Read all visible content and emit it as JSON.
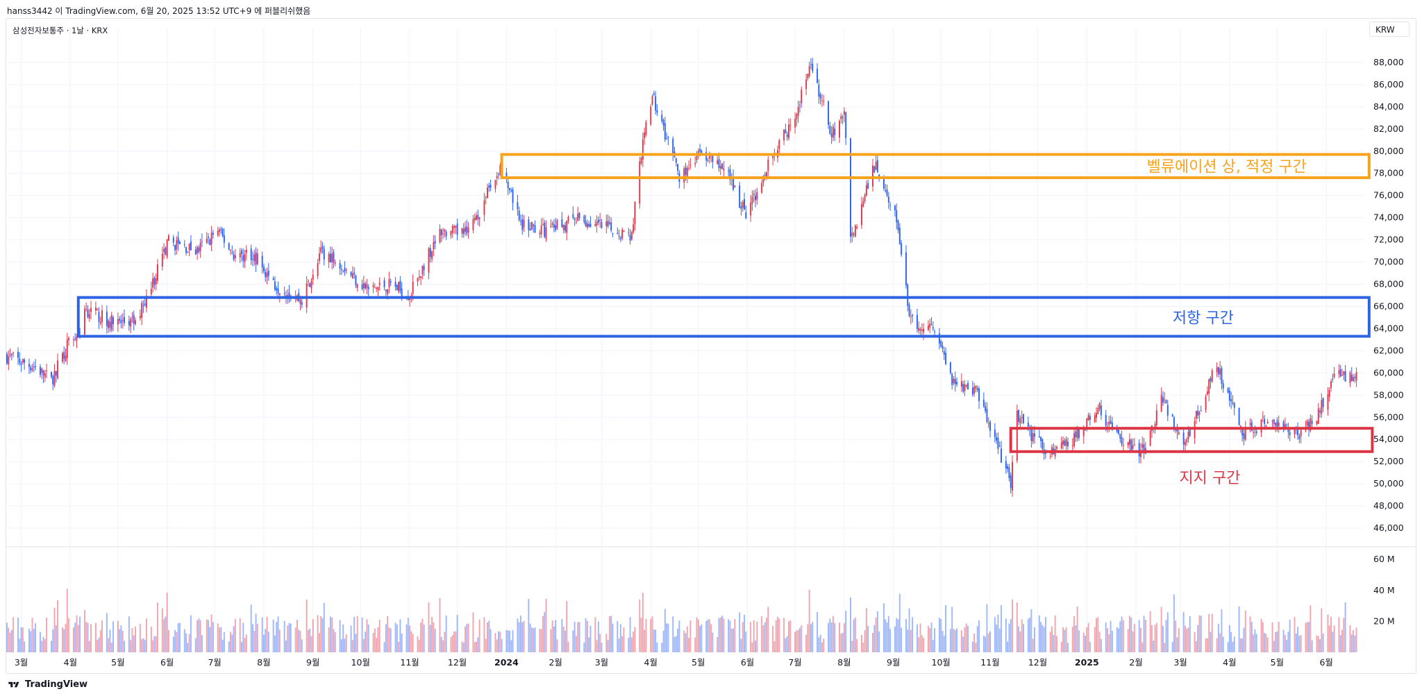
{
  "header": {
    "publication": "hanss3442 이 TradingView.com, 6월 20, 2025 13:52 UTC+9 에 퍼블리쉬했음"
  },
  "symbol": {
    "line": "삼성전자보통주 · 1날 · KRX",
    "currency": "KRW"
  },
  "footer": {
    "brand": "TradingView",
    "logo_icon": "tradingview-logo-icon"
  },
  "colors": {
    "up": "#e2374b",
    "down": "#2962ff",
    "valuation_zone": "#f7a21b",
    "resistance_zone": "#2e63e3",
    "support_zone": "#dc3545",
    "grid": "#f0f3fa"
  },
  "chart_data": {
    "type": "candlestick",
    "price_axis": {
      "ticks": [
        "88,000",
        "86,000",
        "84,000",
        "82,000",
        "80,000",
        "78,000",
        "76,000",
        "74,000",
        "72,000",
        "70,000",
        "68,000",
        "66,000",
        "64,000",
        "62,000",
        "60,000",
        "58,000",
        "56,000",
        "54,000",
        "52,000",
        "50,000",
        "48,000",
        "46,000"
      ],
      "range": [
        44500,
        90500
      ]
    },
    "volume_axis": {
      "ticks": [
        "60 M",
        "40 M",
        "20 M"
      ],
      "range": [
        0,
        65
      ]
    },
    "time_axis": [
      {
        "label": "3월",
        "date": "2023-03-01",
        "bold": false
      },
      {
        "label": "4월",
        "date": "2023-04-01",
        "bold": false
      },
      {
        "label": "5월",
        "date": "2023-05-01",
        "bold": false
      },
      {
        "label": "6월",
        "date": "2023-06-01",
        "bold": false
      },
      {
        "label": "7월",
        "date": "2023-07-01",
        "bold": false
      },
      {
        "label": "8월",
        "date": "2023-08-01",
        "bold": false
      },
      {
        "label": "9월",
        "date": "2023-09-01",
        "bold": false
      },
      {
        "label": "10월",
        "date": "2023-10-01",
        "bold": false
      },
      {
        "label": "11월",
        "date": "2023-11-01",
        "bold": false
      },
      {
        "label": "12월",
        "date": "2023-12-01",
        "bold": false
      },
      {
        "label": "2024",
        "date": "2024-01-01",
        "bold": true
      },
      {
        "label": "2월",
        "date": "2024-02-01",
        "bold": false
      },
      {
        "label": "3월",
        "date": "2024-03-01",
        "bold": false
      },
      {
        "label": "4월",
        "date": "2024-04-01",
        "bold": false
      },
      {
        "label": "5월",
        "date": "2024-05-01",
        "bold": false
      },
      {
        "label": "6월",
        "date": "2024-06-01",
        "bold": false
      },
      {
        "label": "7월",
        "date": "2024-07-01",
        "bold": false
      },
      {
        "label": "8월",
        "date": "2024-08-01",
        "bold": false
      },
      {
        "label": "9월",
        "date": "2024-09-01",
        "bold": false
      },
      {
        "label": "10월",
        "date": "2024-10-01",
        "bold": false
      },
      {
        "label": "11월",
        "date": "2024-11-01",
        "bold": false
      },
      {
        "label": "12월",
        "date": "2024-12-01",
        "bold": false
      },
      {
        "label": "2025",
        "date": "2025-01-01",
        "bold": true
      },
      {
        "label": "2월",
        "date": "2025-02-01",
        "bold": false
      },
      {
        "label": "3월",
        "date": "2025-03-01",
        "bold": false
      },
      {
        "label": "4월",
        "date": "2025-04-01",
        "bold": false
      },
      {
        "label": "5월",
        "date": "2025-05-01",
        "bold": false
      },
      {
        "label": "6월",
        "date": "2025-06-01",
        "bold": false
      }
    ],
    "date_range": [
      "2023-02-20",
      "2025-06-25"
    ],
    "price_path": [
      {
        "date": "2023-02-20",
        "close": 61500
      },
      {
        "date": "2023-03-10",
        "close": 60500
      },
      {
        "date": "2023-03-20",
        "close": 59300
      },
      {
        "date": "2023-03-31",
        "close": 62800
      },
      {
        "date": "2023-04-06",
        "close": 63500
      },
      {
        "date": "2023-04-10",
        "close": 65800
      },
      {
        "date": "2023-04-28",
        "close": 64500
      },
      {
        "date": "2023-05-12",
        "close": 64500
      },
      {
        "date": "2023-05-22",
        "close": 67800
      },
      {
        "date": "2023-06-02",
        "close": 71800
      },
      {
        "date": "2023-06-20",
        "close": 71000
      },
      {
        "date": "2023-07-03",
        "close": 72800
      },
      {
        "date": "2023-07-14",
        "close": 70500
      },
      {
        "date": "2023-07-25",
        "close": 70800
      },
      {
        "date": "2023-08-08",
        "close": 68000
      },
      {
        "date": "2023-08-25",
        "close": 66500
      },
      {
        "date": "2023-09-05",
        "close": 70700
      },
      {
        "date": "2023-09-15",
        "close": 70500
      },
      {
        "date": "2023-09-27",
        "close": 68600
      },
      {
        "date": "2023-10-06",
        "close": 67500
      },
      {
        "date": "2023-10-20",
        "close": 68000
      },
      {
        "date": "2023-11-01",
        "close": 67000
      },
      {
        "date": "2023-11-20",
        "close": 72800
      },
      {
        "date": "2023-12-08",
        "close": 72500
      },
      {
        "date": "2023-12-28",
        "close": 78500
      },
      {
        "date": "2024-01-10",
        "close": 73500
      },
      {
        "date": "2024-01-25",
        "close": 72800
      },
      {
        "date": "2024-02-15",
        "close": 73800
      },
      {
        "date": "2024-03-05",
        "close": 73000
      },
      {
        "date": "2024-03-20",
        "close": 72400
      },
      {
        "date": "2024-03-25",
        "close": 79300
      },
      {
        "date": "2024-04-02",
        "close": 85000
      },
      {
        "date": "2024-04-19",
        "close": 77500
      },
      {
        "date": "2024-05-03",
        "close": 80000
      },
      {
        "date": "2024-05-22",
        "close": 77500
      },
      {
        "date": "2024-05-31",
        "close": 74000
      },
      {
        "date": "2024-06-14",
        "close": 79000
      },
      {
        "date": "2024-07-01",
        "close": 83000
      },
      {
        "date": "2024-07-11",
        "close": 87800
      },
      {
        "date": "2024-07-24",
        "close": 81500
      },
      {
        "date": "2024-08-01",
        "close": 83500
      },
      {
        "date": "2024-08-05",
        "close": 72000
      },
      {
        "date": "2024-08-21",
        "close": 79000
      },
      {
        "date": "2024-09-02",
        "close": 74500
      },
      {
        "date": "2024-09-12",
        "close": 64500
      },
      {
        "date": "2024-09-27",
        "close": 64200
      },
      {
        "date": "2024-10-08",
        "close": 59500
      },
      {
        "date": "2024-10-25",
        "close": 58000
      },
      {
        "date": "2024-11-14",
        "close": 50000
      },
      {
        "date": "2024-11-18",
        "close": 56000
      },
      {
        "date": "2024-12-06",
        "close": 53000
      },
      {
        "date": "2024-12-20",
        "close": 53500
      },
      {
        "date": "2025-01-08",
        "close": 56800
      },
      {
        "date": "2025-01-24",
        "close": 53700
      },
      {
        "date": "2025-02-05",
        "close": 53000
      },
      {
        "date": "2025-02-17",
        "close": 57500
      },
      {
        "date": "2025-03-04",
        "close": 53500
      },
      {
        "date": "2025-03-24",
        "close": 60800
      },
      {
        "date": "2025-04-09",
        "close": 54500
      },
      {
        "date": "2025-04-25",
        "close": 55700
      },
      {
        "date": "2025-05-15",
        "close": 54600
      },
      {
        "date": "2025-05-27",
        "close": 56300
      },
      {
        "date": "2025-06-05",
        "close": 59800
      },
      {
        "date": "2025-06-20",
        "close": 59500
      }
    ],
    "zones": [
      {
        "label": "벨류에이션 상, 적정 구간",
        "start": "2023-12-29",
        "end": "2025-06-28",
        "top": 79700,
        "bottom": 77600,
        "color_key": "valuation_zone"
      },
      {
        "label": "저항 구간",
        "start": "2023-04-06",
        "end": "2025-06-28",
        "top": 66800,
        "bottom": 63300,
        "color_key": "resistance_zone"
      },
      {
        "label": "지지 구간",
        "start": "2024-11-14",
        "end": "2025-06-30",
        "top": 55000,
        "bottom": 52900,
        "color_key": "support_zone"
      }
    ]
  }
}
